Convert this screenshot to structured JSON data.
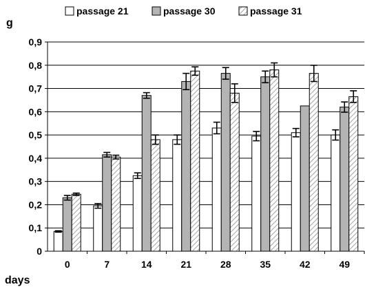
{
  "chart_data": {
    "type": "bar",
    "ylabel": "g",
    "xlabel": "days",
    "categories": [
      "0",
      "7",
      "14",
      "21",
      "28",
      "35",
      "42",
      "49"
    ],
    "ylim": [
      0,
      0.9
    ],
    "yticks": [
      "0",
      "0,1",
      "0,2",
      "0,3",
      "0,4",
      "0,5",
      "0,6",
      "0,7",
      "0,8",
      "0,9"
    ],
    "grid": "horizontal",
    "legend_position": "top",
    "series": [
      {
        "name": "passage 21",
        "pattern": "white",
        "values": [
          0.085,
          0.195,
          0.325,
          0.48,
          0.53,
          0.495,
          0.51,
          0.5
        ],
        "errors": [
          0.003,
          0.01,
          0.012,
          0.02,
          0.025,
          0.02,
          0.018,
          0.022
        ]
      },
      {
        "name": "passage 30",
        "pattern": "gray",
        "values": [
          0.23,
          0.415,
          0.67,
          0.73,
          0.765,
          0.75,
          0.625,
          0.62
        ],
        "errors": [
          0.01,
          0.01,
          0.012,
          0.035,
          0.025,
          0.025,
          0.0,
          0.022
        ]
      },
      {
        "name": "passage 31",
        "pattern": "hatched",
        "values": [
          0.245,
          0.405,
          0.48,
          0.775,
          0.68,
          0.78,
          0.765,
          0.665
        ],
        "errors": [
          0.005,
          0.008,
          0.02,
          0.018,
          0.04,
          0.03,
          0.035,
          0.025
        ]
      }
    ],
    "colors": {
      "white": "#ffffff",
      "gray": "#b4b4b4",
      "hatched_bg": "#ffffff",
      "hatch": "#8c8c8c",
      "grid": "#000000"
    }
  }
}
